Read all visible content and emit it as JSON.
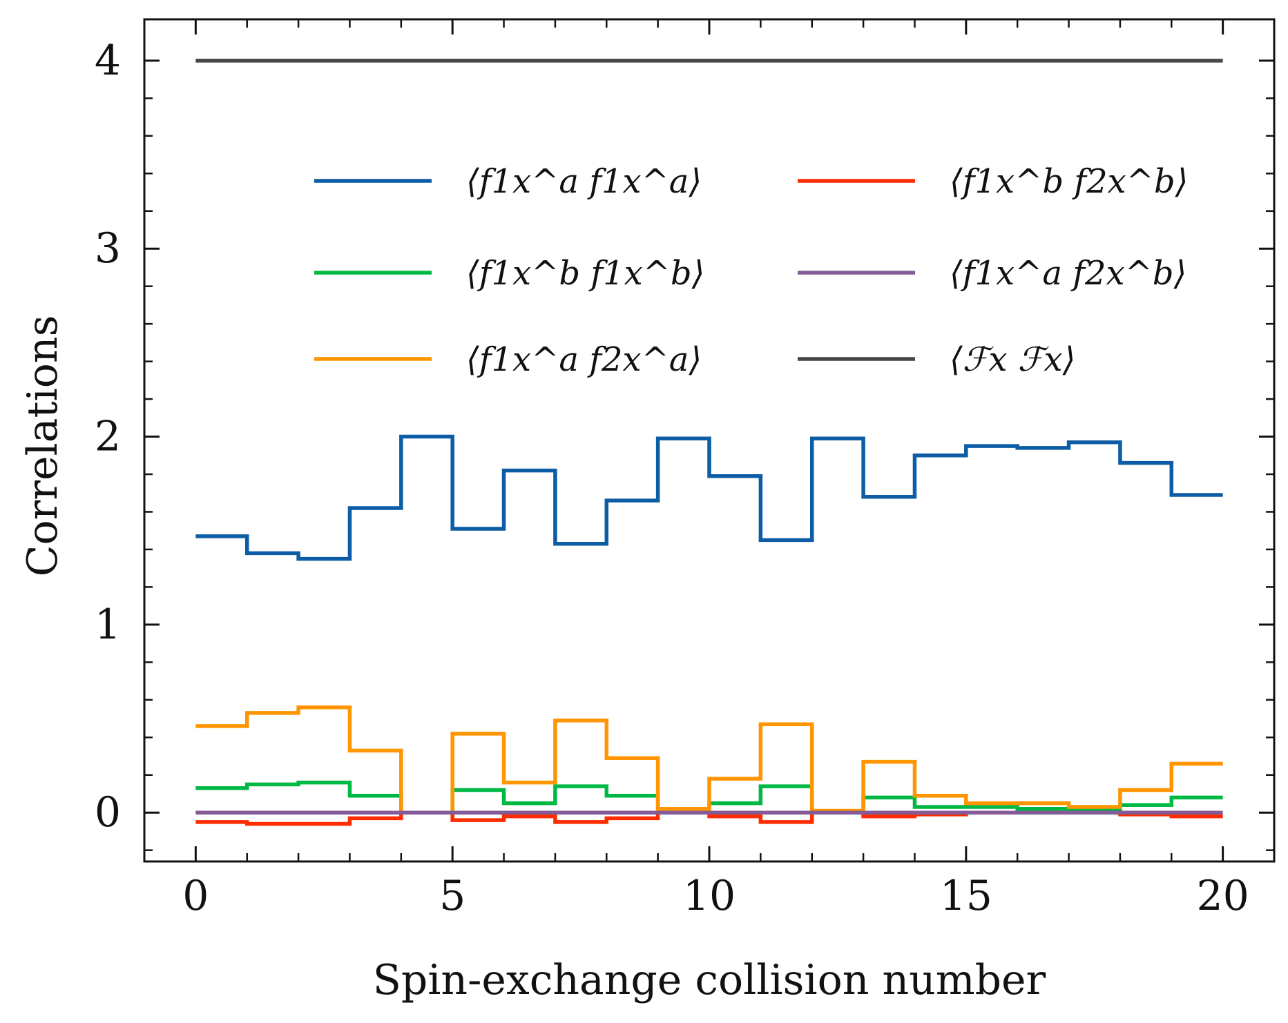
{
  "chart_data": {
    "type": "line",
    "step": "post",
    "xlabel": "Spin-exchange collision number",
    "ylabel": "Correlations",
    "xlim": [
      -1,
      21
    ],
    "ylim": [
      -0.26,
      4.22
    ],
    "xticks": [
      0,
      5,
      10,
      15,
      20
    ],
    "xtick_labels": [
      "0",
      "5",
      "10",
      "15",
      "20"
    ],
    "yticks": [
      0,
      1,
      2,
      3,
      4
    ],
    "ytick_labels": [
      "0",
      "1",
      "2",
      "3",
      "4"
    ],
    "grid": false,
    "legend_position": "upper-center, two columns",
    "x": [
      0,
      1,
      2,
      3,
      4,
      5,
      6,
      7,
      8,
      9,
      10,
      11,
      12,
      13,
      14,
      15,
      16,
      17,
      18,
      19,
      20
    ],
    "series": [
      {
        "name": "⟨f1x^a f1x^a⟩",
        "color": "#0c5da5",
        "values": [
          1.47,
          1.38,
          1.35,
          1.62,
          2.0,
          1.51,
          1.82,
          1.43,
          1.66,
          1.99,
          1.79,
          1.45,
          1.99,
          1.68,
          1.9,
          1.95,
          1.94,
          1.97,
          1.86,
          1.69,
          1.69
        ]
      },
      {
        "name": "⟨f1x^b f1x^b⟩",
        "color": "#00b945",
        "values": [
          0.13,
          0.15,
          0.16,
          0.09,
          0.0,
          0.12,
          0.05,
          0.14,
          0.09,
          0.01,
          0.05,
          0.14,
          0.0,
          0.08,
          0.03,
          0.03,
          0.02,
          0.02,
          0.04,
          0.08,
          0.08
        ]
      },
      {
        "name": "⟨f1x^a f2x^a⟩",
        "color": "#ff9500",
        "values": [
          0.46,
          0.53,
          0.56,
          0.33,
          0.0,
          0.42,
          0.16,
          0.49,
          0.29,
          0.02,
          0.18,
          0.47,
          0.01,
          0.27,
          0.09,
          0.05,
          0.05,
          0.03,
          0.12,
          0.26,
          0.26
        ]
      },
      {
        "name": "⟨f1x^b f2x^b⟩",
        "color": "#ff2c00",
        "values": [
          -0.05,
          -0.06,
          -0.06,
          -0.03,
          0.0,
          -0.04,
          -0.02,
          -0.05,
          -0.03,
          0.0,
          -0.02,
          -0.05,
          0.0,
          -0.02,
          -0.01,
          0.0,
          0.0,
          0.0,
          -0.01,
          -0.02,
          -0.02
        ]
      },
      {
        "name": "⟨f1x^a f2x^b⟩",
        "color": "#845b97",
        "values": [
          0,
          0,
          0,
          0,
          0,
          0,
          0,
          0,
          0,
          0,
          0,
          0,
          0,
          0,
          0,
          0,
          0,
          0,
          0,
          0,
          0
        ]
      },
      {
        "name": "⟨ℱx ℱx⟩",
        "color": "#474747",
        "values": [
          4,
          4,
          4,
          4,
          4,
          4,
          4,
          4,
          4,
          4,
          4,
          4,
          4,
          4,
          4,
          4,
          4,
          4,
          4,
          4,
          4
        ]
      }
    ]
  }
}
